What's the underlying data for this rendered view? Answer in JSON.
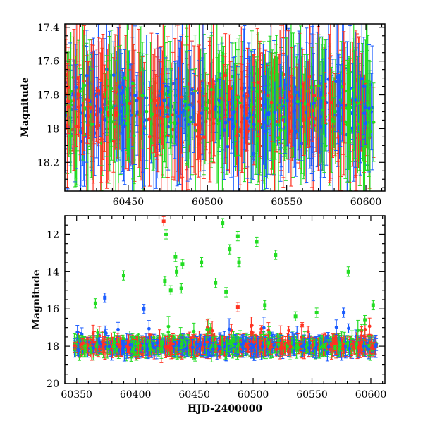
{
  "chart_data": [
    {
      "type": "scatter",
      "panel": "top",
      "title": "",
      "xlabel": "",
      "ylabel": "Magnitude",
      "xlim": [
        60410,
        60612
      ],
      "ylim": [
        18.37,
        17.38
      ],
      "y_inverted": true,
      "x_ticks": [
        60450,
        60500,
        60550,
        60600
      ],
      "x_tick_labels": [
        "60450",
        "60500",
        "60550",
        "60600"
      ],
      "y_ticks": [
        17.4,
        17.6,
        17.8,
        18.0,
        18.2
      ],
      "y_tick_labels": [
        "17.4",
        "17.6",
        "17.8",
        "18",
        "18.2"
      ],
      "grid": false,
      "series": [
        {
          "color": "#22dd22",
          "values_desc": "dense photometry with error bars, magnitude ~17.4–18.4"
        },
        {
          "color": "#1a5cff",
          "values_desc": "dense photometry with error bars, magnitude ~17.4–18.4"
        },
        {
          "color": "#ff3322",
          "values_desc": "dense photometry with error bars, magnitude ~17.4–18.4"
        }
      ]
    },
    {
      "type": "scatter",
      "panel": "bottom",
      "title": "",
      "xlabel": "HJD-2400000",
      "ylabel": "Magnitude",
      "xlim": [
        60340,
        60612
      ],
      "ylim": [
        20,
        11
      ],
      "y_inverted": true,
      "x_ticks": [
        60350,
        60400,
        60450,
        60500,
        60550,
        60600
      ],
      "x_tick_labels": [
        "60350",
        "60400",
        "60450",
        "60500",
        "60550",
        "60600"
      ],
      "y_ticks": [
        12,
        14,
        16,
        18,
        20
      ],
      "y_tick_labels": [
        "12",
        "14",
        "16",
        "18",
        "20"
      ],
      "grid": false,
      "series": [
        {
          "color": "#22dd22",
          "base_magnitude": 18.0
        },
        {
          "color": "#1a5cff",
          "base_magnitude": 18.0
        },
        {
          "color": "#ff3322",
          "base_magnitude": 18.0
        }
      ],
      "outliers": [
        {
          "x": 60424,
          "y": 11.3,
          "color": "#ff3322"
        },
        {
          "x": 60426,
          "y": 12.0,
          "color": "#22dd22"
        },
        {
          "x": 60474,
          "y": 11.4,
          "color": "#22dd22"
        },
        {
          "x": 60487,
          "y": 12.1,
          "color": "#22dd22"
        },
        {
          "x": 60503,
          "y": 12.4,
          "color": "#22dd22"
        },
        {
          "x": 60480,
          "y": 12.8,
          "color": "#22dd22"
        },
        {
          "x": 60519,
          "y": 13.1,
          "color": "#22dd22"
        },
        {
          "x": 60434,
          "y": 13.2,
          "color": "#22dd22"
        },
        {
          "x": 60488,
          "y": 13.5,
          "color": "#22dd22"
        },
        {
          "x": 60456,
          "y": 13.5,
          "color": "#22dd22"
        },
        {
          "x": 60440,
          "y": 13.6,
          "color": "#22dd22"
        },
        {
          "x": 60435,
          "y": 14.0,
          "color": "#22dd22"
        },
        {
          "x": 60581,
          "y": 14.0,
          "color": "#22dd22"
        },
        {
          "x": 60390,
          "y": 14.2,
          "color": "#22dd22"
        },
        {
          "x": 60425,
          "y": 14.5,
          "color": "#22dd22"
        },
        {
          "x": 60468,
          "y": 14.6,
          "color": "#22dd22"
        },
        {
          "x": 60430,
          "y": 15.0,
          "color": "#22dd22"
        },
        {
          "x": 60439,
          "y": 14.9,
          "color": "#22dd22"
        },
        {
          "x": 60477,
          "y": 15.1,
          "color": "#22dd22"
        },
        {
          "x": 60374,
          "y": 15.4,
          "color": "#1a5cff"
        },
        {
          "x": 60366,
          "y": 15.7,
          "color": "#22dd22"
        },
        {
          "x": 60487,
          "y": 15.9,
          "color": "#ff3322"
        },
        {
          "x": 60602,
          "y": 15.8,
          "color": "#22dd22"
        },
        {
          "x": 60577,
          "y": 16.2,
          "color": "#1a5cff"
        },
        {
          "x": 60407,
          "y": 16.0,
          "color": "#1a5cff"
        },
        {
          "x": 60510,
          "y": 15.8,
          "color": "#22dd22"
        },
        {
          "x": 60536,
          "y": 16.4,
          "color": "#22dd22"
        },
        {
          "x": 60554,
          "y": 16.2,
          "color": "#22dd22"
        },
        {
          "x": 60595,
          "y": 16.6,
          "color": "#22dd22"
        }
      ]
    }
  ]
}
